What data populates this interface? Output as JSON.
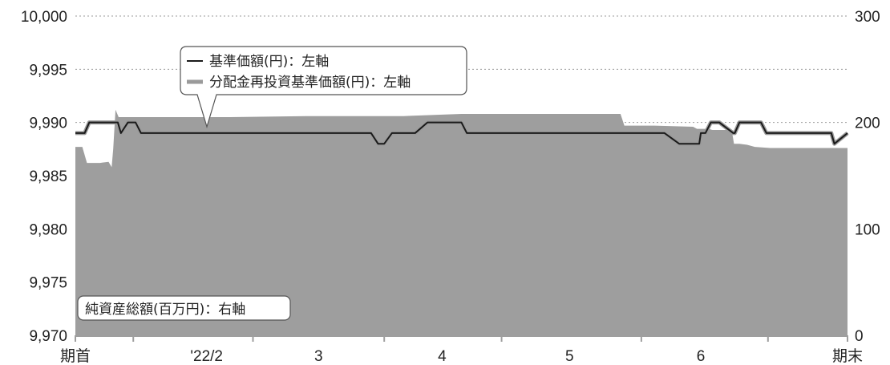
{
  "chart_data": {
    "type": "line",
    "colors": {
      "nav_line": "#1a1a1a",
      "nav_line_outline": "#9a9a9a",
      "reinvested_line": "#9a9a9a",
      "assets_area": "#9e9e9e",
      "grid": "#9a9a9a",
      "axis": "#9e9e9e"
    },
    "y_left": {
      "ylim": [
        9970,
        10000
      ],
      "ticks": [
        9970,
        9975,
        9980,
        9985,
        9990,
        9995,
        10000
      ],
      "tick_labels": [
        "9,970",
        "9,975",
        "9,980",
        "9,985",
        "9,990",
        "9,995",
        "10,000"
      ],
      "grid": true
    },
    "y_right": {
      "ylim": [
        0,
        300
      ],
      "ticks": [
        0,
        100,
        200,
        300
      ],
      "tick_labels": [
        "0",
        "100",
        "200",
        "300"
      ]
    },
    "x_labels": [
      "期首",
      "'22/2",
      "3",
      "4",
      "5",
      "6",
      "期末"
    ],
    "legend": {
      "items": [
        "基準価額(円)：左軸",
        "分配金再投資基準価額(円)：左軸"
      ]
    },
    "area_label": "純資産総額(百万円)：右軸",
    "series": [
      {
        "name": "基準価額(円)：左軸",
        "axis": "left",
        "x": [
          0,
          0.012,
          0.018,
          0.055,
          0.059,
          0.068,
          0.078,
          0.085,
          0.383,
          0.392,
          0.4,
          0.41,
          0.44,
          0.456,
          0.5,
          0.507,
          0.763,
          0.782,
          0.808,
          0.81,
          0.816,
          0.823,
          0.834,
          0.852,
          0.854,
          0.86,
          0.888,
          0.895,
          0.979,
          0.983,
          1
        ],
        "values": [
          9989,
          9989,
          9990,
          9990,
          9989,
          9990,
          9990,
          9989,
          9989,
          9988,
          9988,
          9989,
          9989,
          9990,
          9990,
          9989,
          9989,
          9988,
          9988,
          9989,
          9989,
          9990,
          9990,
          9989,
          9989,
          9990,
          9990,
          9989,
          9989,
          9988,
          9989
        ]
      },
      {
        "name": "分配金再投資基準価額(円)：左軸",
        "axis": "left",
        "x": [
          0,
          0.012,
          0.018,
          0.055,
          0.059,
          0.068,
          0.078,
          0.085,
          0.383,
          0.392,
          0.4,
          0.41,
          0.44,
          0.456,
          0.5,
          0.507,
          0.763,
          0.782,
          0.808,
          0.81,
          0.816,
          0.823,
          0.834,
          0.852,
          0.854,
          0.86,
          0.888,
          0.895,
          0.979,
          0.983,
          1
        ],
        "values": [
          9989,
          9989,
          9990,
          9990,
          9989,
          9990,
          9990,
          9989,
          9989,
          9988,
          9988,
          9989,
          9989,
          9990,
          9990,
          9989,
          9989,
          9988,
          9988,
          9989,
          9989,
          9990,
          9990,
          9989,
          9989,
          9990,
          9990,
          9989,
          9989,
          9988,
          9989
        ]
      },
      {
        "name": "純資産総額(百万円)：右軸",
        "axis": "right",
        "type": "area",
        "x": [
          0,
          0.009,
          0.015,
          0.029,
          0.032,
          0.043,
          0.047,
          0.049,
          0.052,
          0.056,
          0.07,
          0.1,
          0.2,
          0.3,
          0.35,
          0.38,
          0.42,
          0.425,
          0.5,
          0.6,
          0.7,
          0.706,
          0.711,
          0.72,
          0.75,
          0.8,
          0.805,
          0.82,
          0.825,
          0.85,
          0.853,
          0.86,
          0.87,
          0.88,
          0.9,
          0.95,
          1
        ],
        "values": [
          177,
          177,
          162,
          162,
          162,
          163,
          158,
          175,
          212,
          205,
          205,
          205,
          205,
          206,
          206,
          206,
          206,
          206,
          208,
          208,
          208,
          208,
          197,
          197,
          197,
          196,
          194,
          194,
          193,
          193,
          180,
          180,
          179,
          177,
          176,
          176,
          176
        ]
      }
    ]
  }
}
